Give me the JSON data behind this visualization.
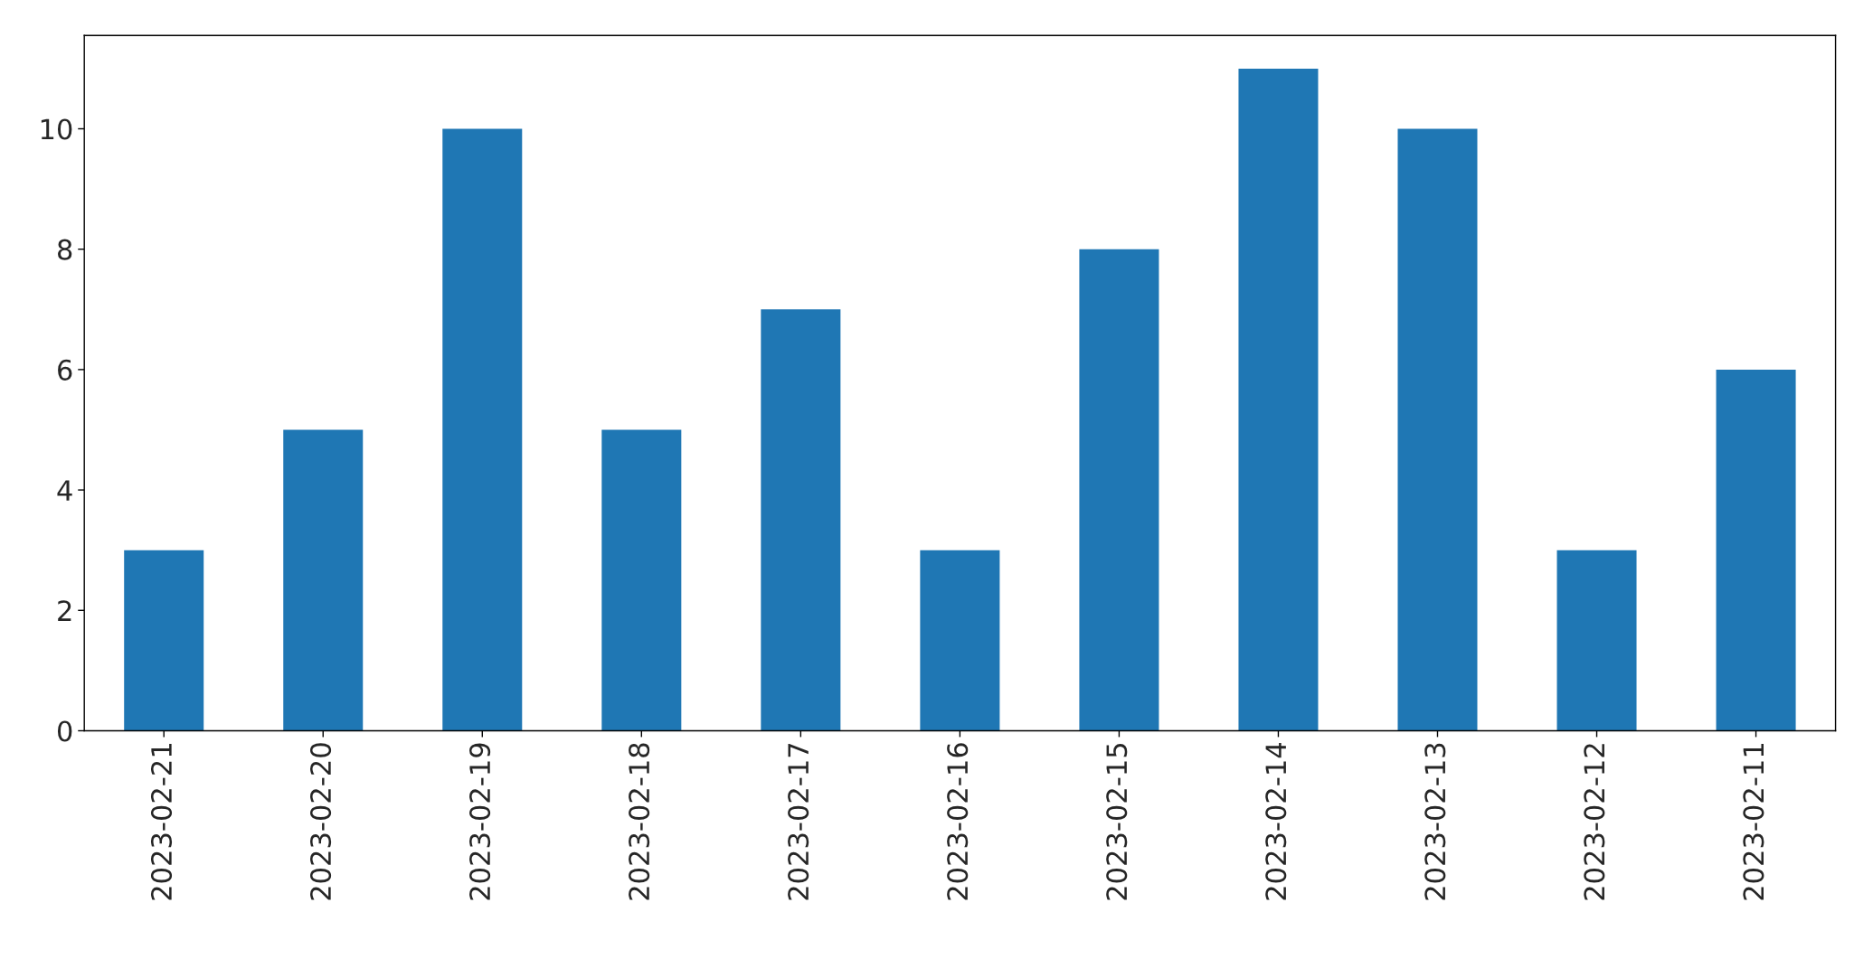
{
  "chart_data": {
    "type": "bar",
    "categories": [
      "2023-02-21",
      "2023-02-20",
      "2023-02-19",
      "2023-02-18",
      "2023-02-17",
      "2023-02-16",
      "2023-02-15",
      "2023-02-14",
      "2023-02-13",
      "2023-02-12",
      "2023-02-11"
    ],
    "values": [
      3,
      5,
      10,
      5,
      7,
      3,
      8,
      11,
      10,
      3,
      6
    ],
    "color": "#1f77b4",
    "ylim": [
      0,
      11.55
    ],
    "yticks": [
      0,
      2,
      4,
      6,
      8,
      10
    ],
    "grid": false,
    "legend": false
  }
}
